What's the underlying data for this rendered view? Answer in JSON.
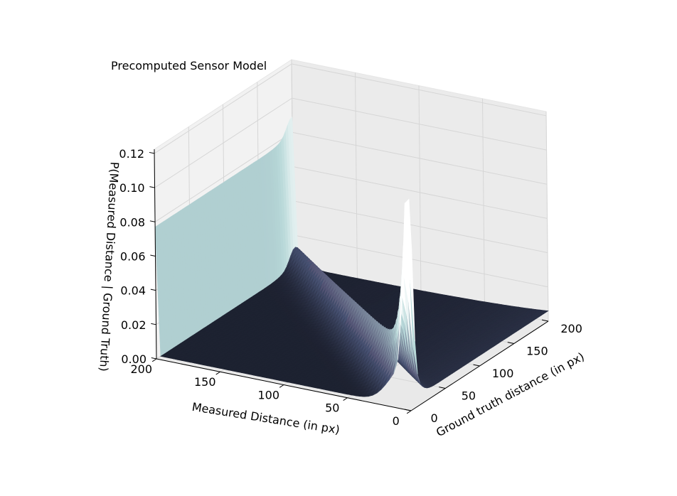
{
  "chart_data": {
    "type": "surface3d",
    "title": "Precomputed Sensor Model",
    "xlabel": "Measured Distance (in px)",
    "ylabel": "Ground truth distance (in px)",
    "zlabel": "P(Measured Distance | Ground Truth)",
    "xlim": [
      0,
      200
    ],
    "ylim": [
      0,
      200
    ],
    "zlim": [
      0,
      0.12
    ],
    "x_ticks": [
      "0",
      "50",
      "100",
      "150",
      "200"
    ],
    "y_ticks": [
      "0",
      "50",
      "100",
      "150",
      "200"
    ],
    "z_ticks": [
      "0.00",
      "0.02",
      "0.04",
      "0.06",
      "0.08",
      "0.10",
      "0.12"
    ],
    "grid": true,
    "colormap": "bone",
    "model": {
      "hit_peak_at_measured_equals_truth": true,
      "max_range_probability_at_200": 0.075,
      "peak_max": 0.125,
      "floor": 0.002
    }
  }
}
